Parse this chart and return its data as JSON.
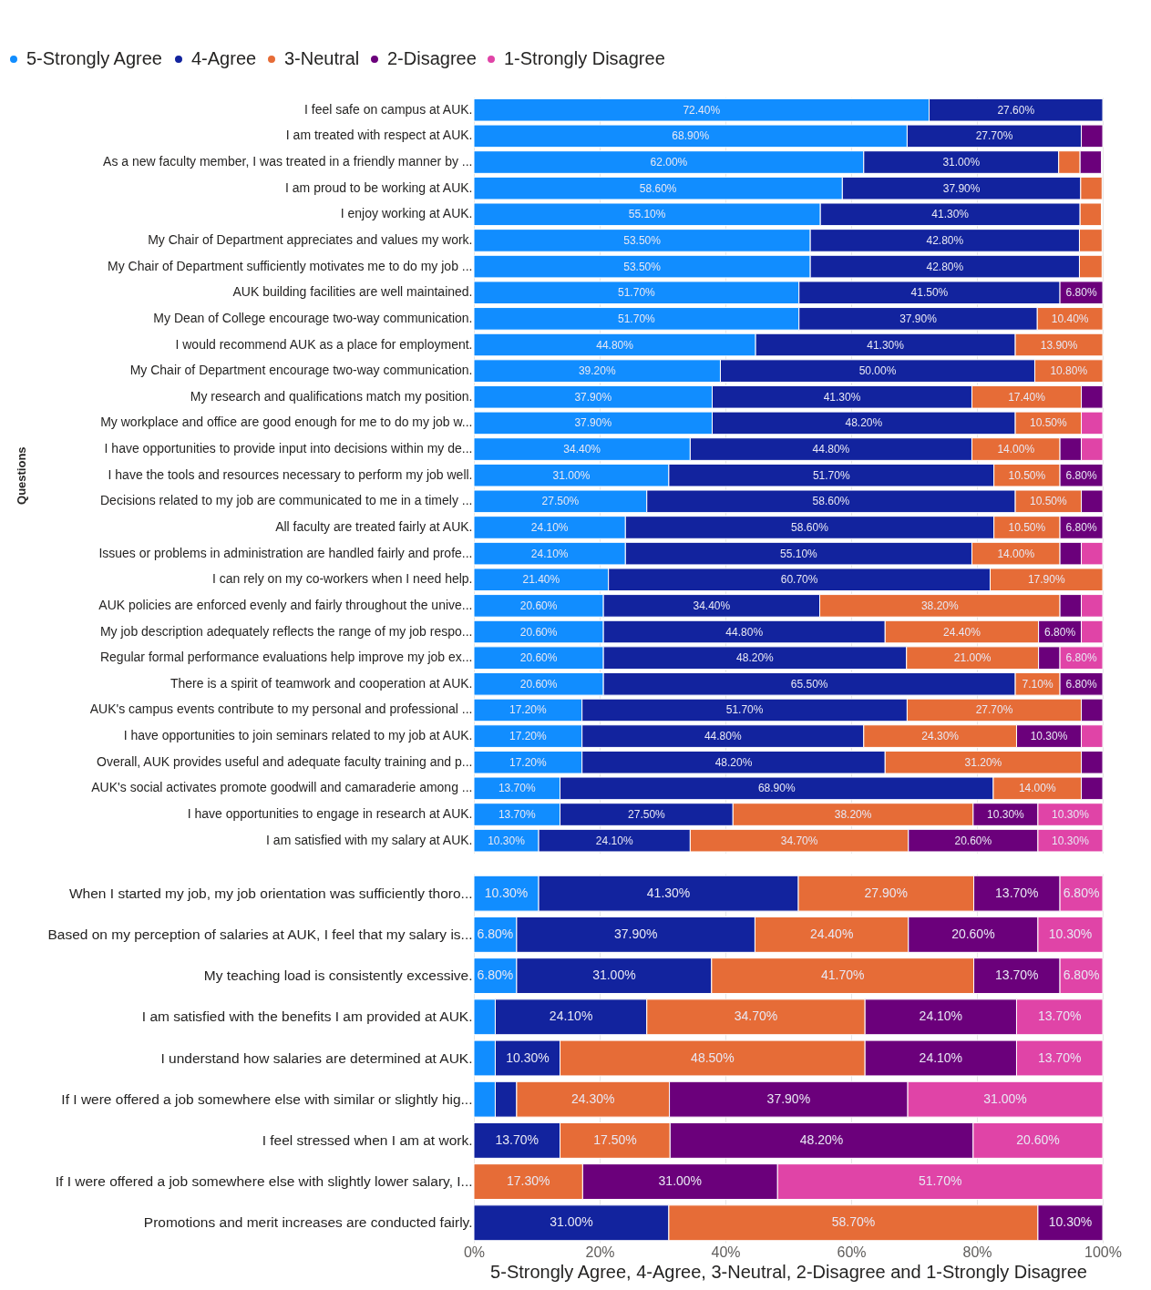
{
  "chart_data": [
    {
      "type": "bar",
      "orientation": "horizontal",
      "stacked": true,
      "ylabel": "Questions",
      "xlim": [
        0,
        100
      ],
      "xticks": [
        {
          "value": 0,
          "label": null
        },
        {
          "value": 20,
          "label": null
        },
        {
          "value": 40,
          "label": null
        },
        {
          "value": 60,
          "label": null
        },
        {
          "value": 80,
          "label": null
        },
        {
          "value": 100,
          "label": null
        }
      ],
      "tick_labels": "y",
      "grid": "x",
      "legend": "top left",
      "categories": [
        "I feel safe on campus at AUK.",
        "I am treated with respect at AUK.",
        "As a new faculty member, I was treated in a friendly manner by ...",
        "I am proud to be working at AUK.",
        "I enjoy working at AUK.",
        "My Chair of Department appreciates and values my work.",
        "My Chair of Department sufficiently motivates me to do my job ...",
        "AUK building facilities are well maintained.",
        "My Dean of College encourage two-way communication.",
        "I would recommend AUK as a place for employment.",
        "My Chair of Department encourage two-way communication.",
        "My research and qualifications match my position.",
        "My workplace and office are good enough for me to do my job w...",
        "I have opportunities to provide input into decisions within my de...",
        "I have the tools and resources necessary to perform my job well.",
        "Decisions related to my job are communicated to me in a timely ...",
        "All faculty are treated fairly at AUK.",
        "Issues or problems in administration are handled fairly and profe...",
        "I can rely on my co-workers when I need help.",
        "AUK policies are enforced evenly and fairly throughout the unive...",
        "My job description adequately reflects the range of my job respo...",
        "Regular formal performance evaluations help improve my job ex...",
        "There is a spirit of teamwork and cooperation at AUK.",
        "AUK's campus events contribute to my personal and professional ...",
        "I have opportunities to join seminars related to my job at AUK.",
        "Overall, AUK provides useful and adequate faculty training and p...",
        "AUK's social activates promote goodwill and camaraderie among ...",
        "I have opportunities to engage in research at AUK.",
        "I am satisfied with my salary at AUK."
      ],
      "series": [
        {
          "name": "5-Strongly Agree",
          "color": "#118dff",
          "values": [
            72.4,
            68.9,
            62.0,
            58.6,
            55.1,
            53.5,
            53.5,
            51.7,
            51.7,
            44.8,
            39.2,
            37.9,
            37.9,
            34.4,
            31.0,
            27.5,
            24.1,
            24.1,
            21.4,
            20.6,
            20.6,
            20.6,
            20.6,
            17.2,
            17.2,
            17.2,
            13.7,
            13.7,
            10.3
          ],
          "value_labels": [
            "72.40%",
            "68.90%",
            "62.00%",
            "58.60%",
            "55.10%",
            "53.50%",
            "53.50%",
            "51.70%",
            "51.70%",
            "44.80%",
            "39.20%",
            "37.90%",
            "37.90%",
            "34.40%",
            "31.00%",
            "27.50%",
            "24.10%",
            "24.10%",
            "21.40%",
            "20.60%",
            "20.60%",
            "20.60%",
            "20.60%",
            "17.20%",
            "17.20%",
            "17.20%",
            "13.70%",
            "13.70%",
            "10.30%"
          ]
        },
        {
          "name": "4-Agree",
          "color": "#12239e",
          "values": [
            27.6,
            27.7,
            31.0,
            37.9,
            41.3,
            42.8,
            42.8,
            41.5,
            37.9,
            41.3,
            50.0,
            41.3,
            48.2,
            44.8,
            51.7,
            58.6,
            58.6,
            55.1,
            60.7,
            34.4,
            44.8,
            48.2,
            65.5,
            51.7,
            44.8,
            48.2,
            68.9,
            27.5,
            24.1
          ],
          "value_labels": [
            "27.60%",
            "27.70%",
            "31.00%",
            "37.90%",
            "41.30%",
            "42.80%",
            "42.80%",
            "41.50%",
            "37.90%",
            "41.30%",
            "50.00%",
            "41.30%",
            "48.20%",
            "44.80%",
            "51.70%",
            "58.60%",
            "58.60%",
            "55.10%",
            "60.70%",
            "34.40%",
            "44.80%",
            "48.20%",
            "65.50%",
            "51.70%",
            "44.80%",
            "48.20%",
            "68.90%",
            "27.50%",
            "24.10%"
          ]
        },
        {
          "name": "3-Neutral",
          "color": "#e66c37",
          "values": [
            null,
            null,
            3.4,
            3.4,
            3.4,
            3.6,
            3.6,
            null,
            10.4,
            13.9,
            10.8,
            17.4,
            10.5,
            14.0,
            10.5,
            10.5,
            10.5,
            14.0,
            17.9,
            38.2,
            24.4,
            21.0,
            7.1,
            27.7,
            24.3,
            31.2,
            14.0,
            38.2,
            34.7
          ],
          "value_labels": [
            null,
            null,
            null,
            null,
            null,
            null,
            null,
            null,
            "10.40%",
            "13.90%",
            "10.80%",
            "17.40%",
            "10.50%",
            "14.00%",
            "10.50%",
            "10.50%",
            "10.50%",
            "14.00%",
            "17.90%",
            "38.20%",
            "24.40%",
            "21.00%",
            "7.10%",
            "27.70%",
            "24.30%",
            "31.20%",
            "14.00%",
            "38.20%",
            "34.70%"
          ]
        },
        {
          "name": "2-Disagree",
          "color": "#6b007b",
          "values": [
            null,
            3.4,
            3.4,
            null,
            null,
            null,
            null,
            6.8,
            null,
            null,
            null,
            3.4,
            null,
            3.4,
            6.8,
            3.4,
            6.8,
            3.4,
            null,
            3.4,
            6.8,
            3.4,
            6.8,
            3.4,
            10.3,
            3.4,
            3.4,
            10.3,
            20.6
          ],
          "value_labels": [
            null,
            null,
            null,
            null,
            null,
            null,
            null,
            "6.80%",
            null,
            null,
            null,
            null,
            null,
            null,
            "6.80%",
            null,
            "6.80%",
            null,
            null,
            null,
            "6.80%",
            null,
            "6.80%",
            null,
            "10.30%",
            null,
            null,
            "10.30%",
            "20.60%"
          ]
        },
        {
          "name": "1-Strongly Disagree",
          "color": "#e044a7",
          "values": [
            null,
            null,
            null,
            null,
            null,
            null,
            null,
            null,
            null,
            null,
            null,
            null,
            3.4,
            3.4,
            null,
            null,
            null,
            3.4,
            null,
            3.4,
            3.4,
            6.8,
            null,
            null,
            3.4,
            null,
            null,
            10.3,
            10.3
          ],
          "value_labels": [
            null,
            null,
            null,
            null,
            null,
            null,
            null,
            null,
            null,
            null,
            null,
            null,
            null,
            null,
            null,
            null,
            null,
            null,
            null,
            null,
            null,
            "6.80%",
            null,
            null,
            null,
            null,
            null,
            "10.30%",
            "10.30%"
          ]
        }
      ]
    },
    {
      "type": "bar",
      "orientation": "horizontal",
      "stacked": true,
      "xlabel": "5-Strongly Agree, 4-Agree, 3-Neutral, 2-Disagree and 1-Strongly Disagree",
      "xlim": [
        0,
        100
      ],
      "xticks": [
        {
          "value": 0,
          "label": "0%"
        },
        {
          "value": 20,
          "label": "20%"
        },
        {
          "value": 40,
          "label": "40%"
        },
        {
          "value": 60,
          "label": "60%"
        },
        {
          "value": 80,
          "label": "80%"
        },
        {
          "value": 100,
          "label": "100%"
        }
      ],
      "grid": "x",
      "categories": [
        "When I started my job, my job orientation was sufficiently thoro...",
        "Based on my perception of salaries at AUK, I feel that my salary is...",
        "My teaching load is consistently excessive.",
        "I am satisfied with the benefits I am provided at AUK.",
        "I understand how salaries are determined at AUK.",
        "If I were offered a job somewhere else with similar or slightly hig...",
        "I feel stressed when I am at work.",
        "If I were offered a job somewhere else with slightly lower salary, I...",
        "Promotions and merit increases are conducted fairly."
      ],
      "series": [
        {
          "color": "#118dff",
          "values": [
            10.3,
            6.8,
            6.8,
            3.4,
            3.4,
            3.4,
            null,
            null,
            null
          ],
          "value_labels": [
            "10.30%",
            "6.80%",
            "6.80%",
            null,
            null,
            null,
            null,
            null,
            null
          ]
        },
        {
          "color": "#12239e",
          "values": [
            41.3,
            37.9,
            31.0,
            24.1,
            10.3,
            3.4,
            13.7,
            null,
            31.0
          ],
          "value_labels": [
            "41.30%",
            "37.90%",
            "31.00%",
            "24.10%",
            "10.30%",
            null,
            "13.70%",
            null,
            "31.00%"
          ]
        },
        {
          "color": "#e66c37",
          "values": [
            27.9,
            24.4,
            41.7,
            34.7,
            48.5,
            24.3,
            17.5,
            17.3,
            58.7
          ],
          "value_labels": [
            "27.90%",
            "24.40%",
            "41.70%",
            "34.70%",
            "48.50%",
            "24.30%",
            "17.50%",
            "17.30%",
            "58.70%"
          ]
        },
        {
          "color": "#6b007b",
          "values": [
            13.7,
            20.6,
            13.7,
            24.1,
            24.1,
            37.9,
            48.2,
            31.0,
            10.3
          ],
          "value_labels": [
            "13.70%",
            "20.60%",
            "13.70%",
            "24.10%",
            "24.10%",
            "37.90%",
            "48.20%",
            "31.00%",
            "10.30%"
          ]
        },
        {
          "color": "#e044a7",
          "values": [
            6.8,
            10.3,
            6.8,
            13.7,
            13.7,
            31.0,
            20.6,
            51.7,
            null
          ],
          "value_labels": [
            "6.80%",
            "10.30%",
            "6.80%",
            "13.70%",
            "13.70%",
            "31.00%",
            "20.60%",
            "51.70%",
            null
          ]
        }
      ]
    }
  ]
}
